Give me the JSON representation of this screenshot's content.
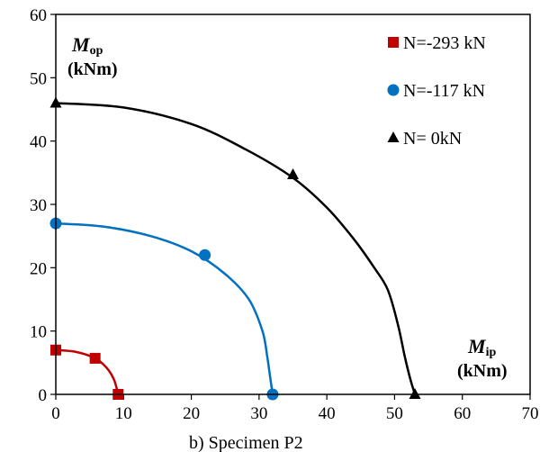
{
  "chart_data": {
    "type": "scatter",
    "xlim": [
      0,
      70
    ],
    "ylim": [
      0,
      60
    ],
    "x_ticks": [
      0,
      10,
      20,
      30,
      40,
      50,
      60,
      70
    ],
    "y_ticks": [
      0,
      10,
      20,
      30,
      40,
      50,
      60
    ],
    "grid": false,
    "legend_position": "top-right",
    "x_axis_title": {
      "symbol": "M",
      "subscript": "ip",
      "unit": "(kNm)"
    },
    "y_axis_title": {
      "symbol": "M",
      "subscript": "op",
      "unit": "(kNm)"
    },
    "caption": "b)   Specimen P2",
    "series": [
      {
        "name": "N=-293 kN",
        "marker": "square",
        "color": "#C00000",
        "points": [
          [
            0,
            7
          ],
          [
            5.8,
            5.7
          ],
          [
            9.2,
            0
          ]
        ],
        "curve": [
          [
            0,
            7
          ],
          [
            3,
            6.7
          ],
          [
            5.8,
            5.7
          ],
          [
            7.5,
            4.2
          ],
          [
            8.6,
            2.3
          ],
          [
            9.2,
            0
          ]
        ]
      },
      {
        "name": "N=-117 kN",
        "marker": "circle",
        "color": "#0070C0",
        "points": [
          [
            0,
            27
          ],
          [
            22,
            22
          ],
          [
            32,
            0
          ]
        ],
        "curve": [
          [
            0,
            27
          ],
          [
            7,
            26.5
          ],
          [
            14,
            25
          ],
          [
            20,
            22.6
          ],
          [
            25,
            19
          ],
          [
            28.5,
            15
          ],
          [
            30.5,
            10
          ],
          [
            31.2,
            6
          ],
          [
            31.6,
            3
          ],
          [
            32,
            0
          ]
        ]
      },
      {
        "name": "N= 0kN",
        "marker": "triangle",
        "color": "#000000",
        "points": [
          [
            0,
            46
          ],
          [
            35,
            34.7
          ],
          [
            53,
            0
          ]
        ],
        "curve": [
          [
            0,
            46
          ],
          [
            10,
            45.3
          ],
          [
            20,
            42.7
          ],
          [
            28,
            38.7
          ],
          [
            35,
            34.2
          ],
          [
            40,
            29.5
          ],
          [
            44,
            24.5
          ],
          [
            47,
            20
          ],
          [
            49,
            16.5
          ],
          [
            50.5,
            11
          ],
          [
            51.5,
            6
          ],
          [
            52.3,
            2.5
          ],
          [
            53,
            0
          ]
        ]
      }
    ]
  }
}
